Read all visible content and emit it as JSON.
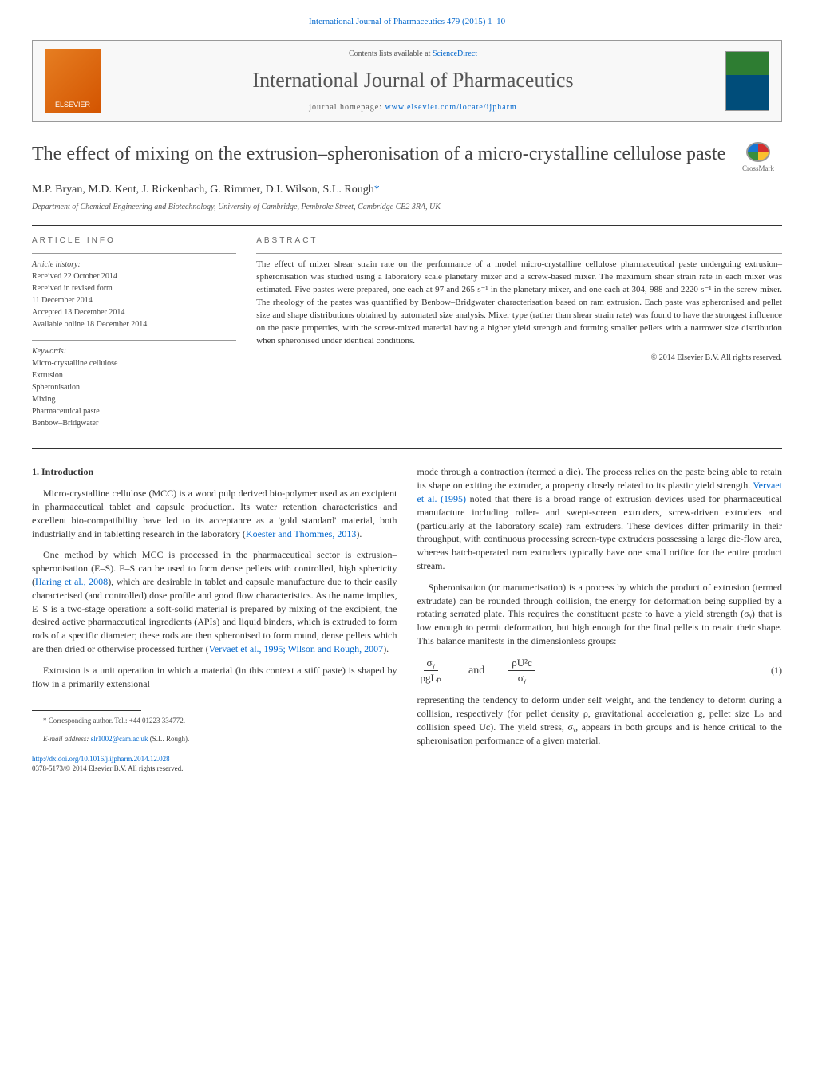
{
  "top_citation": "International Journal of Pharmaceutics 479 (2015) 1–10",
  "header": {
    "contents_prefix": "Contents lists available at ",
    "contents_link": "ScienceDirect",
    "journal_name": "International Journal of Pharmaceutics",
    "homepage_prefix": "journal homepage: ",
    "homepage_link": "www.elsevier.com/locate/ijpharm",
    "publisher_logo_text": "ELSEVIER"
  },
  "crossmark_label": "CrossMark",
  "article": {
    "title": "The effect of mixing on the extrusion–spheronisation of a micro-crystalline cellulose paste",
    "authors": "M.P. Bryan, M.D. Kent, J. Rickenbach, G. Rimmer, D.I. Wilson, S.L. Rough",
    "corresponding_marker": "*",
    "affiliation": "Department of Chemical Engineering and Biotechnology, University of Cambridge, Pembroke Street, Cambridge CB2 3RA, UK"
  },
  "info": {
    "heading": "ARTICLE INFO",
    "history_label": "Article history:",
    "received": "Received 22 October 2014",
    "revised_label": "Received in revised form",
    "revised_date": "11 December 2014",
    "accepted": "Accepted 13 December 2014",
    "online": "Available online 18 December 2014",
    "keywords_label": "Keywords:",
    "kw1": "Micro-crystalline cellulose",
    "kw2": "Extrusion",
    "kw3": "Spheronisation",
    "kw4": "Mixing",
    "kw5": "Pharmaceutical paste",
    "kw6": "Benbow–Bridgwater"
  },
  "abstract": {
    "heading": "ABSTRACT",
    "text": "The effect of mixer shear strain rate on the performance of a model micro-crystalline cellulose pharmaceutical paste undergoing extrusion–spheronisation was studied using a laboratory scale planetary mixer and a screw-based mixer. The maximum shear strain rate in each mixer was estimated. Five pastes were prepared, one each at 97 and 265 s⁻¹ in the planetary mixer, and one each at 304, 988 and 2220 s⁻¹ in the screw mixer. The rheology of the pastes was quantified by Benbow–Bridgwater characterisation based on ram extrusion. Each paste was spheronised and pellet size and shape distributions obtained by automated size analysis. Mixer type (rather than shear strain rate) was found to have the strongest influence on the paste properties, with the screw-mixed material having a higher yield strength and forming smaller pellets with a narrower size distribution when spheronised under identical conditions.",
    "copyright": "© 2014 Elsevier B.V. All rights reserved."
  },
  "body": {
    "section_heading": "1.  Introduction",
    "left": {
      "p1a": "Micro-crystalline cellulose (MCC) is a wood pulp derived bio-polymer used as an excipient in pharmaceutical tablet and capsule production. Its water retention characteristics and excellent bio-compatibility have led to its acceptance as a 'gold standard' material, both industrially and in tabletting research in the laboratory (",
      "p1ref": "Koester and Thommes, 2013",
      "p1b": ").",
      "p2a": "One method by which MCC is processed in the pharmaceutical sector is extrusion–spheronisation (E–S). E–S can be used to form dense pellets with controlled, high sphericity (",
      "p2ref1": "Haring et al., 2008",
      "p2b": "), which are desirable in tablet and capsule manufacture due to their easily characterised (and controlled) dose profile and good flow characteristics. As the name implies, E–S is a two-stage operation: a soft-solid material is prepared by mixing of the excipient, the desired active pharmaceutical ingredients (APIs) and liquid binders, which is extruded to form rods of a specific diameter; these rods are then spheronised to form round, dense pellets which are then dried or otherwise processed further (",
      "p2ref2": "Vervaet et al., 1995; Wilson and Rough, 2007",
      "p2c": ").",
      "p3": "Extrusion is a unit operation in which a material (in this context a stiff paste) is shaped by flow in a primarily extensional"
    },
    "right": {
      "p1a": "mode through a contraction (termed a die). The process relies on the paste being able to retain its shape on exiting the extruder, a property closely related to its plastic yield strength. ",
      "p1ref": "Vervaet et al. (1995)",
      "p1b": " noted that there is a broad range of extrusion devices used for pharmaceutical manufacture including roller- and swept-screen extruders, screw-driven extruders and (particularly at the laboratory scale) ram extruders. These devices differ primarily in their throughput, with continuous processing screen-type extruders possessing a large die-flow area, whereas batch-operated ram extruders typically have one small orifice for the entire product stream.",
      "p2": "Spheronisation (or marumerisation) is a process by which the product of extrusion (termed extrudate) can be rounded through collision, the energy for deformation being supplied by a rotating serrated plate. This requires the constituent paste to have a yield strength (σᵧ) that is low enough to permit deformation, but high enough for the final pellets to retain their shape. This balance manifests in the dimensionless groups:",
      "eq_and": "and",
      "eq_num": "(1)",
      "p3": "representing the tendency to deform under self weight, and the tendency to deform during a collision, respectively (for pellet density ρ, gravitational acceleration g, pellet size Lₚ and collision speed Uc). The yield stress, σᵧ, appears in both groups and is hence critical to the spheronisation performance of a given material."
    }
  },
  "footnote": {
    "corr_label": "* Corresponding author. Tel.: +44 01223 334772.",
    "email_label": "E-mail address: ",
    "email": "slr1002@cam.ac.uk",
    "email_name": " (S.L. Rough)."
  },
  "doi": {
    "link": "http://dx.doi.org/10.1016/j.ijpharm.2014.12.028",
    "issn_line": "0378-5173/© 2014 Elsevier B.V. All rights reserved."
  },
  "equation": {
    "frac1_num": "σᵧ",
    "frac1_den": "ρgLₚ",
    "frac2_num": "ρU²c",
    "frac2_den": "σᵧ"
  }
}
